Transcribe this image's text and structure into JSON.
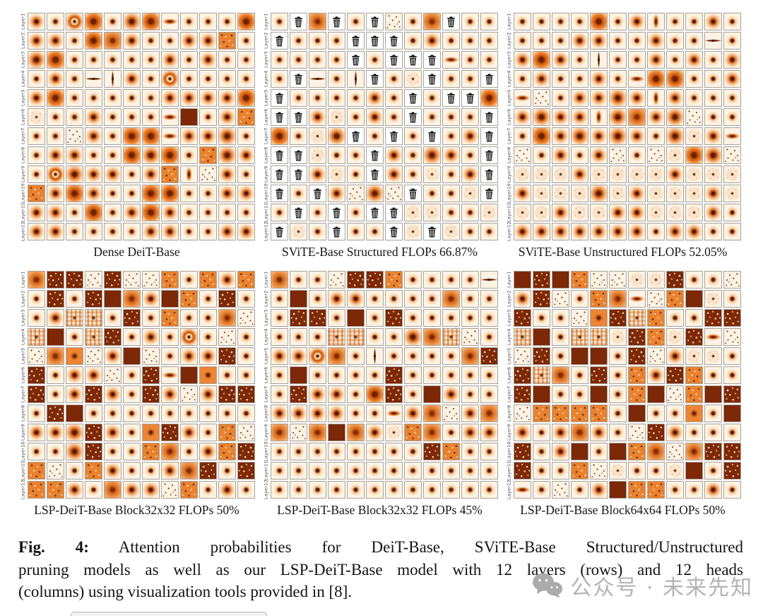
{
  "figure": {
    "label": "Fig. 4:",
    "caption_lines": [
      "Attention probabilities for DeiT-Base, SViTE-Base Structured/Unstructured",
      "pruning models as well as our LSP-DeiT-Base model with 12 layers (rows) and 12 heads",
      "(columns) using visualization tools provided in  [8]."
    ]
  },
  "watermark": {
    "icon": "wechat-icon",
    "text": "公众号 · 未来先知",
    "color": "#b3b3b3"
  },
  "grid_meta": {
    "rows": 12,
    "cols": 12,
    "row_label_prefix": "Layer"
  },
  "layers": [
    "Layer1",
    "Layer2",
    "Layer3",
    "Layer4",
    "Layer5",
    "Layer6",
    "Layer7",
    "Layer8",
    "Layer9",
    "Layer10",
    "Layer11",
    "Layer12"
  ],
  "cell_code_legend": {
    "d": "small dark center dot",
    "g": "small gaussian blob",
    "G": "medium gaussian blob",
    "B": "strong orange blob",
    "R": "ring-shaped blob",
    "h": "horizontal elongated blob",
    "v": "vertical elongated blob",
    "H": "thin horizontal line",
    "V": "thin vertical line",
    "s": "sparse dark speckle",
    "n": "dense dark speckle",
    "N": "orange speckle",
    "S": "solid dark brown",
    "O": "solid orange",
    "o": "orange gaussian wash",
    "p": "plaid stripe pattern",
    "f": "faint mottled map",
    "T": "pruned head (trash icon)"
  },
  "palette": {
    "cream": "#fcf3e4",
    "mid_orange": "#e8822f",
    "strong_orange": "#cf5a0d",
    "dark_brown": "#7d2806",
    "dot": "#43150a",
    "grid_border": "#a8a29a",
    "pruned_bg": "#ffffff"
  },
  "panels": [
    {
      "caption": "Dense DeiT-Base",
      "rows": [
        "gdRBdGBhdddB",
        "ggdBogddggNd",
        "GBdddddgdgdd",
        "dgdHVgdRdddd",
        "gBdddddggggB",
        "fddgdddhSdgN",
        "ddsgdBBhggGd",
        "dggddBGBdNGg",
        "dRGggdgNvsgd",
        "NgBgddBBddgg",
        "ggdBdgBgdddd",
        "ggddddggddgg"
      ]
    },
    {
      "caption": "SViTE-Base Structured FLOPs 66.87%",
      "rows": [
        "dToTdTsdoTdd",
        "TdddTTTdgddd",
        "ddddTdTTThdd",
        "dTHdVTdfTddT",
        "TddddgdTdTTB",
        "TTgfdgdTdddT",
        "BdfGTdTdTdgT",
        "TTfddTgdGgdT",
        "TTgfdTgdfdgT",
        "TdTgsGsTddfT",
        "dTdTdTTffddf",
        "TfdTddTfTfdd"
      ]
    },
    {
      "caption": "SViTE-Base Unstructured FLOPs 52.05%",
      "rows": [
        "ddddBdgvddgd",
        "dddggddgddHd",
        "gBgdVddgdgdg",
        "dgddgdhBBddg",
        "hsdggGgvgddd",
        "gGggvGogGsdd",
        "dBgGgGgdGfgh",
        "sdgdgsdsfBGs",
        "fffgffffgfff",
        "gfffGfgfffgf",
        "ffgffggfffgd",
        "gggggggdggdd"
      ]
    },
    {
      "caption": "LSP-DeiT-Base Block32x32 FLOPs 50%",
      "rows": [
        "onnsnssNdNgN",
        "dndnSogSNdnd",
        "dgppdndNddos",
        "pSdpndgdRdsd",
        "soOsgSsdggnd",
        "ndggsdnhSOdd",
        "ndgngdngsgnn",
        "dnSddddddddd",
        "ggGngdOngdNs",
        "ddGnddNodgNn",
        "NsdNgddgondn",
        "NNgdoggsNdgd"
      ]
    },
    {
      "caption": "LSP-DeiT-Base Block32x32 FLOPs 45%",
      "rows": [
        "oddsnnNddddH",
        "dSdggddddodd",
        "dnndSdnddddd",
        "dddppddGopsd",
        "ggRodVddddon",
        "dSddddnddddd",
        "dnggdBndSgdd",
        "ggggddhgosgo",
        "osoSogfNodgg",
        "ddddddddnNdd",
        "dddddddddddd",
        "dddddddddddd"
      ]
    },
    {
      "caption": "LSP-DeiT-Base Block64x64 FLOPs 50%",
      "rows": [
        "SnSNssffndds",
        "gnsdNohsNSfd",
        "nddsOnpNddnn",
        "pSdppfnNfnhs",
        "sndSSdnsgffd",
        "npodndNgnNdd",
        "nSddSdNSsNSn",
        "sNNNNdSddOdS",
        "gdgogdsngddd",
        "ndgSdSNosonn",
        "nddNsfddfSdn",
        "hdsdgSNNddgd"
      ]
    }
  ]
}
